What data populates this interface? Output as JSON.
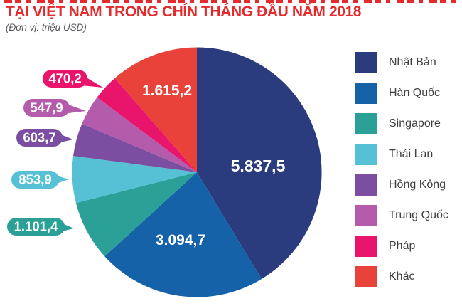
{
  "header": {
    "title": "TẠI VIỆT NAM TRONG CHÍN THÁNG ĐẦU NĂM 2018",
    "subtitle": "(Đơn vị: triệu USD)"
  },
  "legend": {
    "items": [
      {
        "label": "Nhật Bản",
        "color": "#2a3c7d"
      },
      {
        "label": "Hàn Quốc",
        "color": "#1562a8"
      },
      {
        "label": "Singapore",
        "color": "#2aa096"
      },
      {
        "label": "Thái Lan",
        "color": "#56c0d4"
      },
      {
        "label": "Hồng Kông",
        "color": "#7b4ea1"
      },
      {
        "label": "Trung Quốc",
        "color": "#b45bac"
      },
      {
        "label": "Pháp",
        "color": "#e9146b"
      },
      {
        "label": "Khác",
        "color": "#e8423b"
      }
    ]
  },
  "chart_data": {
    "type": "pie",
    "title": "TẠI VIỆT NAM TRONG CHÍN THÁNG ĐẦU NĂM 2018",
    "unit": "triệu USD",
    "categories": [
      "Nhật Bản",
      "Hàn Quốc",
      "Singapore",
      "Thái Lan",
      "Hồng Kông",
      "Trung Quốc",
      "Pháp",
      "Khác"
    ],
    "values": [
      5837.5,
      3094.7,
      1101.4,
      853.9,
      603.7,
      547.9,
      470.2,
      1615.2
    ],
    "value_labels": [
      "5.837,5",
      "3.094,7",
      "1.101,4",
      "853,9",
      "603,7",
      "547,9",
      "470,2",
      "1.615,2"
    ],
    "colors": [
      "#2a3c7d",
      "#1562a8",
      "#2aa096",
      "#56c0d4",
      "#7b4ea1",
      "#b45bac",
      "#e9146b",
      "#e8423b"
    ],
    "start_angle_deg": 0,
    "direction": "clockwise",
    "legend_position": "right",
    "label_placement": {
      "inside": [
        "Nhật Bản",
        "Hàn Quốc",
        "Khác"
      ],
      "callout_left": [
        "Singapore",
        "Thái Lan",
        "Hồng Kông",
        "Trung Quốc",
        "Pháp"
      ]
    }
  }
}
